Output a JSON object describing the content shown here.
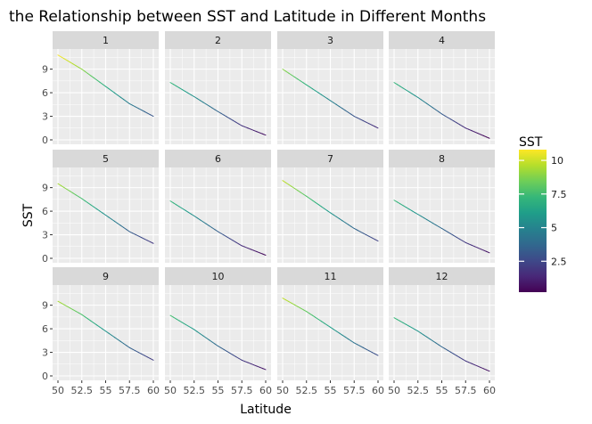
{
  "chart_data": {
    "type": "line",
    "title": "the Relationship between SST and Latitude in Different Months",
    "xlabel": "Latitude",
    "ylabel": "SST",
    "xlim": [
      50,
      60
    ],
    "ylim": [
      0,
      11
    ],
    "x_ticks": [
      50,
      52.5,
      55,
      57.5,
      60
    ],
    "x_tick_labels": [
      "50",
      "52.5",
      "55",
      "57.5",
      "60"
    ],
    "y_ticks": [
      0,
      3,
      6,
      9
    ],
    "y_tick_labels": [
      "0",
      "3",
      "6",
      "9"
    ],
    "x": [
      50,
      52.5,
      55,
      57.5,
      60
    ],
    "facets": [
      {
        "label": "1",
        "values": [
          10.8,
          9.0,
          6.8,
          4.6,
          3.0
        ]
      },
      {
        "label": "2",
        "values": [
          7.3,
          5.5,
          3.6,
          1.8,
          0.6
        ]
      },
      {
        "label": "3",
        "values": [
          9.0,
          7.0,
          5.0,
          3.0,
          1.5
        ]
      },
      {
        "label": "4",
        "values": [
          7.3,
          5.4,
          3.3,
          1.5,
          0.2
        ]
      },
      {
        "label": "5",
        "values": [
          9.5,
          7.6,
          5.5,
          3.4,
          1.9
        ]
      },
      {
        "label": "6",
        "values": [
          7.3,
          5.4,
          3.4,
          1.6,
          0.4
        ]
      },
      {
        "label": "7",
        "values": [
          9.9,
          7.9,
          5.8,
          3.8,
          2.2
        ]
      },
      {
        "label": "8",
        "values": [
          7.4,
          5.6,
          3.8,
          2.0,
          0.7
        ]
      },
      {
        "label": "9",
        "values": [
          9.5,
          7.8,
          5.7,
          3.6,
          2.0
        ]
      },
      {
        "label": "10",
        "values": [
          7.7,
          5.9,
          3.8,
          2.0,
          0.8
        ]
      },
      {
        "label": "11",
        "values": [
          9.9,
          8.2,
          6.2,
          4.2,
          2.6
        ]
      },
      {
        "label": "12",
        "values": [
          7.4,
          5.7,
          3.7,
          1.9,
          0.6
        ]
      }
    ],
    "legend": {
      "title": "SST",
      "placement": "right",
      "range": [
        0.2,
        10.8
      ],
      "breaks": [
        2.5,
        5,
        7.5,
        10
      ],
      "labels": [
        "2.5",
        "5",
        "7.5",
        "10"
      ],
      "palette": [
        "#440154",
        "#482878",
        "#3e4989",
        "#31688e",
        "#26828e",
        "#1f9e89",
        "#35b779",
        "#6ece58",
        "#b5de2b",
        "#fde725"
      ]
    },
    "colors": {
      "panel_bg": "#ebebeb",
      "grid": "#ffffff",
      "strip_bg": "#d9d9d9"
    }
  }
}
